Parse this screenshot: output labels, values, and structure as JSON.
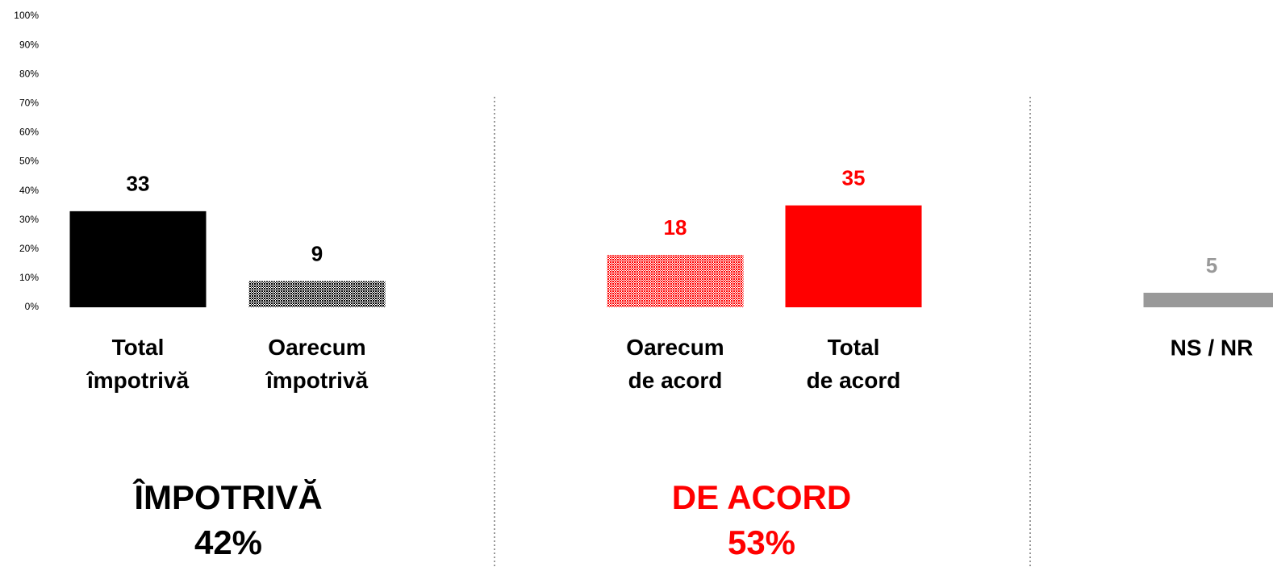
{
  "chart_data": {
    "type": "bar",
    "categories": [
      "Total\nîmpotrivă",
      "Oarecum\nîmpotrivă",
      "Oarecum\nde acord",
      "Total\nde acord",
      "NS / NR"
    ],
    "values": [
      33,
      9,
      18,
      35,
      5
    ],
    "colors": [
      "#000000",
      "#000000",
      "#ff0000",
      "#ff0000",
      "#999999"
    ],
    "patterned": [
      false,
      true,
      true,
      false,
      false
    ],
    "ylim": [
      0,
      100
    ],
    "yticks": [
      {
        "value": 0,
        "label": "0%"
      },
      {
        "value": 10,
        "label": "10%"
      },
      {
        "value": 20,
        "label": "20%"
      },
      {
        "value": 30,
        "label": "30%"
      },
      {
        "value": 40,
        "label": "40%"
      },
      {
        "value": 50,
        "label": "50%"
      },
      {
        "value": 60,
        "label": "60%"
      },
      {
        "value": 70,
        "label": "70%"
      },
      {
        "value": 80,
        "label": "80%"
      },
      {
        "value": 90,
        "label": "90%"
      },
      {
        "value": 100,
        "label": "100%"
      }
    ],
    "grid": false,
    "annotations": [
      {
        "text": "ÎMPOTRIVĂ",
        "color": "#000000"
      },
      {
        "text": "42%",
        "color": "#000000"
      },
      {
        "text": "DE ACORD",
        "color": "#ff0000"
      },
      {
        "text": "53%",
        "color": "#ff0000"
      }
    ]
  }
}
